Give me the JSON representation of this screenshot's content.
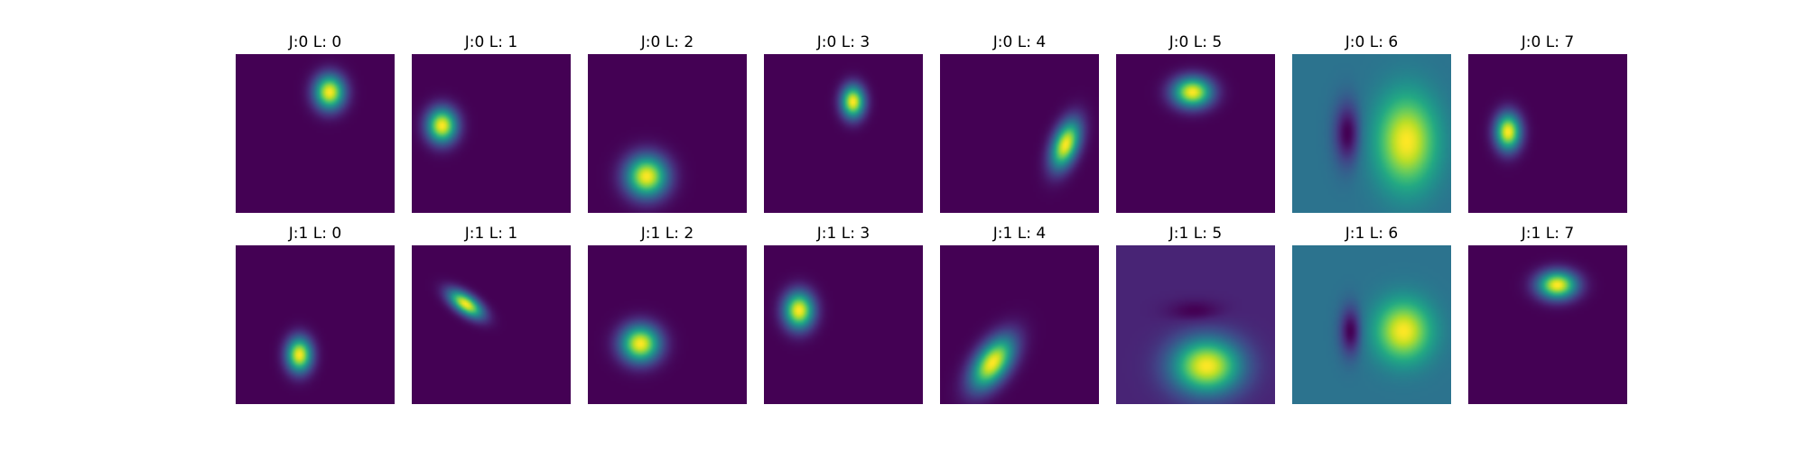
{
  "chart_data": {
    "type": "heatmap",
    "colormap": "viridis",
    "grid": false,
    "axes_visible": false,
    "panels": [
      {
        "title": "J:0 L: 0",
        "row": 0,
        "col": 0,
        "blobs": [
          {
            "cx": 0.59,
            "cy": 0.24,
            "sx": 0.065,
            "sy": 0.075,
            "rot": 0,
            "amp": 1
          }
        ],
        "background": 0
      },
      {
        "title": "J:0 L: 1",
        "row": 0,
        "col": 1,
        "blobs": [
          {
            "cx": 0.19,
            "cy": 0.45,
            "sx": 0.065,
            "sy": 0.075,
            "rot": 0,
            "amp": 1
          }
        ],
        "background": 0
      },
      {
        "title": "J:0 L: 2",
        "row": 0,
        "col": 2,
        "blobs": [
          {
            "cx": 0.37,
            "cy": 0.77,
            "sx": 0.09,
            "sy": 0.09,
            "rot": 0,
            "amp": 1
          }
        ],
        "background": 0
      },
      {
        "title": "J:0 L: 3",
        "row": 0,
        "col": 3,
        "blobs": [
          {
            "cx": 0.56,
            "cy": 0.3,
            "sx": 0.05,
            "sy": 0.07,
            "rot": 0,
            "amp": 1
          }
        ],
        "background": 0
      },
      {
        "title": "J:0 L: 4",
        "row": 0,
        "col": 4,
        "blobs": [
          {
            "cx": 0.79,
            "cy": 0.57,
            "sx": 0.055,
            "sy": 0.11,
            "rot": 20,
            "amp": 1
          }
        ],
        "background": 0
      },
      {
        "title": "J:0 L: 5",
        "row": 0,
        "col": 5,
        "blobs": [
          {
            "cx": 0.48,
            "cy": 0.24,
            "sx": 0.085,
            "sy": 0.065,
            "rot": 0,
            "amp": 1
          }
        ],
        "background": 0
      },
      {
        "title": "J:0 L: 6",
        "row": 0,
        "col": 6,
        "blobs": [
          {
            "cx": 0.72,
            "cy": 0.55,
            "sx": 0.13,
            "sy": 0.2,
            "rot": 0,
            "amp": 1
          },
          {
            "cx": 0.35,
            "cy": 0.5,
            "sx": 0.06,
            "sy": 0.14,
            "rot": 0,
            "amp": -0.35
          }
        ],
        "background": 0.38
      },
      {
        "title": "J:0 L: 7",
        "row": 0,
        "col": 7,
        "blobs": [
          {
            "cx": 0.25,
            "cy": 0.49,
            "sx": 0.055,
            "sy": 0.08,
            "rot": 0,
            "amp": 1
          }
        ],
        "background": 0
      },
      {
        "title": "J:1 L: 0",
        "row": 1,
        "col": 0,
        "blobs": [
          {
            "cx": 0.4,
            "cy": 0.69,
            "sx": 0.055,
            "sy": 0.075,
            "rot": 0,
            "amp": 1
          }
        ],
        "background": 0
      },
      {
        "title": "J:1 L: 1",
        "row": 1,
        "col": 1,
        "blobs": [
          {
            "cx": 0.34,
            "cy": 0.37,
            "sx": 0.04,
            "sy": 0.085,
            "rot": -55,
            "amp": 1
          }
        ],
        "background": 0
      },
      {
        "title": "J:1 L: 2",
        "row": 1,
        "col": 2,
        "blobs": [
          {
            "cx": 0.33,
            "cy": 0.62,
            "sx": 0.085,
            "sy": 0.08,
            "rot": 0,
            "amp": 1
          }
        ],
        "background": 0
      },
      {
        "title": "J:1 L: 3",
        "row": 1,
        "col": 3,
        "blobs": [
          {
            "cx": 0.22,
            "cy": 0.41,
            "sx": 0.065,
            "sy": 0.08,
            "rot": 0,
            "amp": 1
          }
        ],
        "background": 0
      },
      {
        "title": "J:1 L: 4",
        "row": 1,
        "col": 4,
        "blobs": [
          {
            "cx": 0.33,
            "cy": 0.74,
            "sx": 0.07,
            "sy": 0.13,
            "rot": 35,
            "amp": 1
          }
        ],
        "background": 0
      },
      {
        "title": "J:1 L: 5",
        "row": 1,
        "col": 5,
        "blobs": [
          {
            "cx": 0.57,
            "cy": 0.76,
            "sx": 0.15,
            "sy": 0.12,
            "rot": 0,
            "amp": 1
          },
          {
            "cx": 0.5,
            "cy": 0.42,
            "sx": 0.12,
            "sy": 0.05,
            "rot": 0,
            "amp": -0.08
          }
        ],
        "background": 0.1
      },
      {
        "title": "J:1 L: 6",
        "row": 1,
        "col": 6,
        "blobs": [
          {
            "cx": 0.7,
            "cy": 0.54,
            "sx": 0.12,
            "sy": 0.13,
            "rot": 0,
            "amp": 1
          },
          {
            "cx": 0.37,
            "cy": 0.54,
            "sx": 0.05,
            "sy": 0.11,
            "rot": 0,
            "amp": -0.35
          }
        ],
        "background": 0.38
      },
      {
        "title": "J:1 L: 7",
        "row": 1,
        "col": 7,
        "blobs": [
          {
            "cx": 0.56,
            "cy": 0.25,
            "sx": 0.085,
            "sy": 0.06,
            "rot": 0,
            "amp": 1
          }
        ],
        "background": 0
      }
    ]
  }
}
